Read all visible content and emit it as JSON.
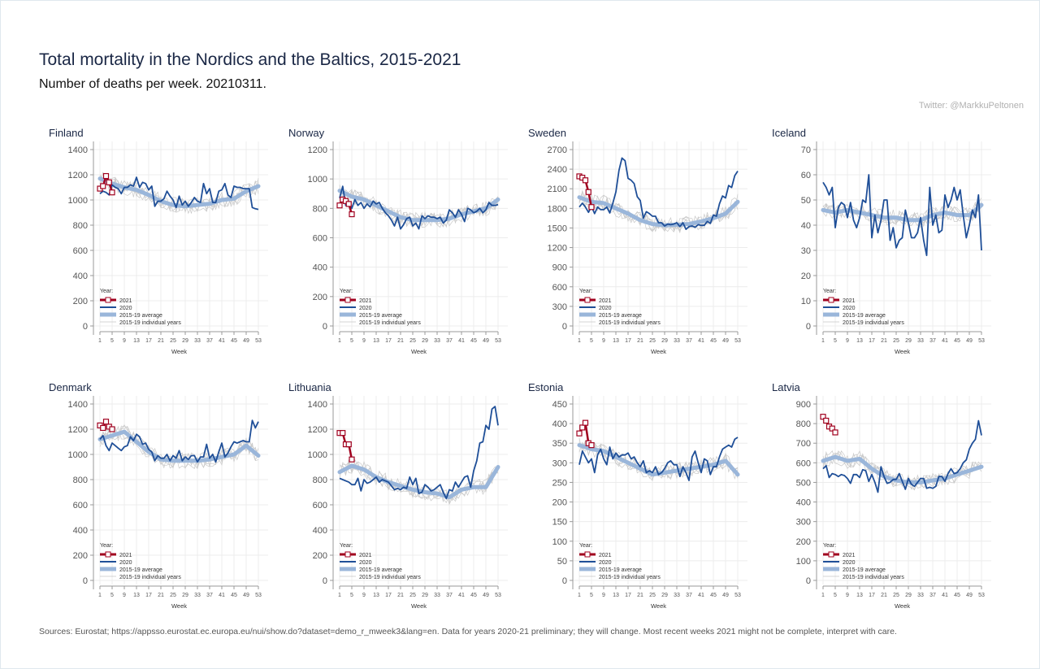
{
  "header": {
    "title": "Total mortality in the Nordics and the Baltics, 2015-2021",
    "subtitle": "Number of deaths per week. 20210311.",
    "credit": "Twitter: @MarkkuPeltonen"
  },
  "footer": {
    "source": "Sources: Eurostat; https://appsso.eurostat.ec.europa.eu/nui/show.do?dataset=demo_r_mweek3&lang=en. Data for years 2020-21 preliminary; they will change. Most recent weeks 2021 might not be complete, interpret with care."
  },
  "colors": {
    "y2021": "#a0001e",
    "y2020": "#1f4f98",
    "avg": "#9ab6da",
    "individual": "#c9c9c9",
    "grid": "#ececec",
    "axis": "#999999"
  },
  "legend": {
    "title": "Year:",
    "items": [
      "2021",
      "2020",
      "2015-19 average",
      "2015-19 individual years"
    ]
  },
  "chart_data": [
    {
      "type": "line",
      "title": "Finland",
      "xlabel": "Week",
      "x_ticks": [
        1,
        5,
        9,
        13,
        17,
        21,
        25,
        29,
        33,
        37,
        41,
        45,
        49,
        53
      ],
      "ylim": [
        0,
        1400
      ],
      "y_ticks": [
        0,
        200,
        400,
        600,
        800,
        1000,
        1200,
        1400
      ],
      "y2021": [
        1090,
        1110,
        1190,
        1140,
        1060
      ],
      "y2020": [
        1050,
        1070,
        1060,
        1040,
        1120,
        1100,
        1090,
        1050,
        1100,
        1100,
        1120,
        1110,
        1180,
        1100,
        1140,
        1130,
        1080,
        1110,
        950,
        990,
        990,
        1010,
        1070,
        1030,
        1000,
        940,
        1030,
        960,
        990,
        950,
        980,
        1020,
        990,
        980,
        1130,
        1050,
        1090,
        980,
        980,
        1070,
        1080,
        1130,
        1040,
        1020,
        1110,
        1100,
        1100,
        1090,
        1090,
        1090,
        940,
        930,
        925
      ],
      "avg_at_ticks": [
        1170,
        1130,
        1100,
        1080,
        1040,
        990,
        960,
        950,
        960,
        970,
        1000,
        1010,
        1070,
        1110
      ]
    },
    {
      "type": "line",
      "title": "Norway",
      "xlabel": "Week",
      "x_ticks": [
        1,
        5,
        9,
        13,
        17,
        21,
        25,
        29,
        33,
        37,
        41,
        45,
        49,
        53
      ],
      "ylim": [
        0,
        1200
      ],
      "y_ticks": [
        0,
        200,
        400,
        600,
        800,
        1000,
        1200
      ],
      "y2021": [
        820,
        860,
        850,
        830,
        760
      ],
      "y2020": [
        870,
        950,
        820,
        830,
        800,
        860,
        820,
        840,
        800,
        830,
        810,
        850,
        830,
        840,
        800,
        770,
        750,
        720,
        680,
        740,
        660,
        690,
        730,
        740,
        680,
        700,
        660,
        750,
        730,
        750,
        740,
        740,
        730,
        740,
        700,
        720,
        790,
        770,
        740,
        790,
        760,
        710,
        800,
        790,
        770,
        780,
        800,
        770,
        790,
        840,
        820,
        820,
        825
      ],
      "avg_at_ticks": [
        920,
        880,
        860,
        820,
        780,
        740,
        720,
        720,
        720,
        730,
        760,
        780,
        800,
        860
      ]
    },
    {
      "type": "line",
      "title": "Sweden",
      "xlabel": "Week",
      "x_ticks": [
        1,
        5,
        9,
        13,
        17,
        21,
        25,
        29,
        33,
        37,
        41,
        45,
        49,
        53
      ],
      "ylim": [
        0,
        2700
      ],
      "y_ticks": [
        0,
        300,
        600,
        900,
        1200,
        1500,
        1800,
        2100,
        2400,
        2700
      ],
      "y2021": [
        2290,
        2270,
        2230,
        2050,
        1820
      ],
      "y2020": [
        1820,
        1880,
        1820,
        1740,
        1830,
        1720,
        1820,
        1780,
        1780,
        1820,
        1730,
        1880,
        2050,
        2380,
        2570,
        2530,
        2260,
        2230,
        2180,
        1980,
        1920,
        1650,
        1750,
        1720,
        1680,
        1680,
        1580,
        1580,
        1530,
        1560,
        1550,
        1560,
        1580,
        1520,
        1580,
        1480,
        1520,
        1530,
        1510,
        1550,
        1540,
        1540,
        1600,
        1570,
        1700,
        1680,
        1870,
        1990,
        1960,
        2150,
        2120,
        2300,
        2370
      ],
      "avg_at_ticks": [
        1970,
        1900,
        1880,
        1800,
        1720,
        1620,
        1560,
        1540,
        1550,
        1560,
        1600,
        1650,
        1720,
        1900
      ]
    },
    {
      "type": "line",
      "title": "Iceland",
      "xlabel": "Week",
      "x_ticks": [
        1,
        5,
        9,
        13,
        17,
        21,
        25,
        29,
        33,
        37,
        41,
        45,
        49,
        53
      ],
      "ylim": [
        0,
        70
      ],
      "y_ticks": [
        0,
        10,
        20,
        30,
        40,
        50,
        60,
        70
      ],
      "y2021": [],
      "y2020": [
        57,
        55,
        52,
        55,
        39,
        47,
        49,
        48,
        43,
        49,
        42,
        39,
        43,
        50,
        49,
        60,
        35,
        44,
        37,
        42,
        50,
        50,
        34,
        39,
        31,
        34,
        35,
        46,
        41,
        35,
        35,
        37,
        43,
        34,
        28,
        55,
        40,
        44,
        37,
        38,
        52,
        47,
        50,
        55,
        50,
        54,
        44,
        35,
        40,
        46,
        43,
        52,
        30
      ],
      "avg_at_ticks": [
        46,
        45,
        46,
        45,
        44,
        43,
        43,
        42,
        42,
        44,
        45,
        44,
        44,
        48
      ]
    },
    {
      "type": "line",
      "title": "Denmark",
      "xlabel": "Week",
      "x_ticks": [
        1,
        5,
        9,
        13,
        17,
        21,
        25,
        29,
        33,
        37,
        41,
        45,
        49,
        53
      ],
      "ylim": [
        0,
        1400
      ],
      "y_ticks": [
        0,
        200,
        400,
        600,
        800,
        1000,
        1200,
        1400
      ],
      "y2021": [
        1230,
        1210,
        1260,
        1220,
        1200
      ],
      "y2020": [
        1120,
        1150,
        1070,
        1030,
        1090,
        1070,
        1050,
        1030,
        1060,
        1070,
        1140,
        1110,
        1160,
        1140,
        1080,
        1090,
        1040,
        1020,
        950,
        990,
        970,
        970,
        1000,
        950,
        990,
        970,
        1030,
        950,
        980,
        960,
        990,
        990,
        940,
        980,
        980,
        1080,
        970,
        1000,
        940,
        1020,
        1090,
        980,
        1010,
        1060,
        1100,
        1090,
        1100,
        1110,
        1100,
        1100,
        1270,
        1210,
        1260
      ],
      "avg_at_ticks": [
        1120,
        1150,
        1180,
        1100,
        1020,
        960,
        950,
        950,
        950,
        960,
        980,
        1000,
        1070,
        990
      ]
    },
    {
      "type": "line",
      "title": "Lithuania",
      "xlabel": "Week",
      "x_ticks": [
        1,
        5,
        9,
        13,
        17,
        21,
        25,
        29,
        33,
        37,
        41,
        45,
        49,
        53
      ],
      "ylim": [
        0,
        1400
      ],
      "y_ticks": [
        0,
        200,
        400,
        600,
        800,
        1000,
        1200,
        1400
      ],
      "y2021": [
        1170,
        1170,
        1080,
        1080,
        960
      ],
      "y2020": [
        810,
        800,
        790,
        780,
        760,
        760,
        810,
        710,
        800,
        770,
        780,
        800,
        820,
        780,
        800,
        790,
        780,
        750,
        720,
        730,
        720,
        740,
        730,
        820,
        760,
        810,
        690,
        700,
        760,
        740,
        710,
        720,
        740,
        760,
        700,
        650,
        720,
        710,
        780,
        740,
        780,
        820,
        830,
        740,
        870,
        950,
        1090,
        1100,
        1230,
        1200,
        1360,
        1380,
        1230
      ],
      "avg_at_ticks": [
        860,
        910,
        880,
        820,
        780,
        750,
        720,
        700,
        690,
        660,
        720,
        740,
        740,
        900
      ]
    },
    {
      "type": "line",
      "title": "Estonia",
      "xlabel": "Week",
      "x_ticks": [
        1,
        5,
        9,
        13,
        17,
        21,
        25,
        29,
        33,
        37,
        41,
        45,
        49,
        53
      ],
      "ylim": [
        0,
        450
      ],
      "y_ticks": [
        0,
        50,
        100,
        150,
        200,
        250,
        300,
        350,
        400,
        450
      ],
      "y2021": [
        375,
        390,
        402,
        350,
        345
      ],
      "y2020": [
        295,
        330,
        315,
        300,
        310,
        275,
        320,
        335,
        310,
        295,
        340,
        310,
        325,
        315,
        320,
        320,
        325,
        310,
        315,
        300,
        290,
        305,
        275,
        280,
        275,
        290,
        270,
        275,
        285,
        300,
        305,
        295,
        295,
        265,
        290,
        275,
        255,
        315,
        330,
        300,
        275,
        310,
        305,
        270,
        290,
        290,
        315,
        335,
        340,
        345,
        340,
        360,
        365
      ],
      "avg_at_ticks": [
        345,
        335,
        330,
        315,
        300,
        285,
        270,
        275,
        280,
        285,
        290,
        295,
        305,
        270
      ]
    },
    {
      "type": "line",
      "title": "Latvia",
      "xlabel": "Week",
      "x_ticks": [
        1,
        5,
        9,
        13,
        17,
        21,
        25,
        29,
        33,
        37,
        41,
        45,
        49,
        53
      ],
      "ylim": [
        0,
        900
      ],
      "y_ticks": [
        0,
        100,
        200,
        300,
        400,
        500,
        600,
        700,
        800,
        900
      ],
      "y2021": [
        835,
        815,
        785,
        775,
        755
      ],
      "y2020": [
        570,
        585,
        525,
        545,
        540,
        530,
        540,
        535,
        520,
        495,
        540,
        540,
        525,
        565,
        560,
        505,
        540,
        500,
        450,
        580,
        530,
        495,
        500,
        515,
        515,
        545,
        505,
        465,
        520,
        490,
        480,
        500,
        520,
        520,
        470,
        475,
        470,
        480,
        530,
        530,
        505,
        545,
        570,
        545,
        550,
        570,
        600,
        615,
        670,
        700,
        720,
        815,
        740
      ],
      "avg_at_ticks": [
        610,
        630,
        610,
        620,
        570,
        530,
        510,
        500,
        500,
        510,
        520,
        540,
        560,
        580
      ]
    }
  ]
}
